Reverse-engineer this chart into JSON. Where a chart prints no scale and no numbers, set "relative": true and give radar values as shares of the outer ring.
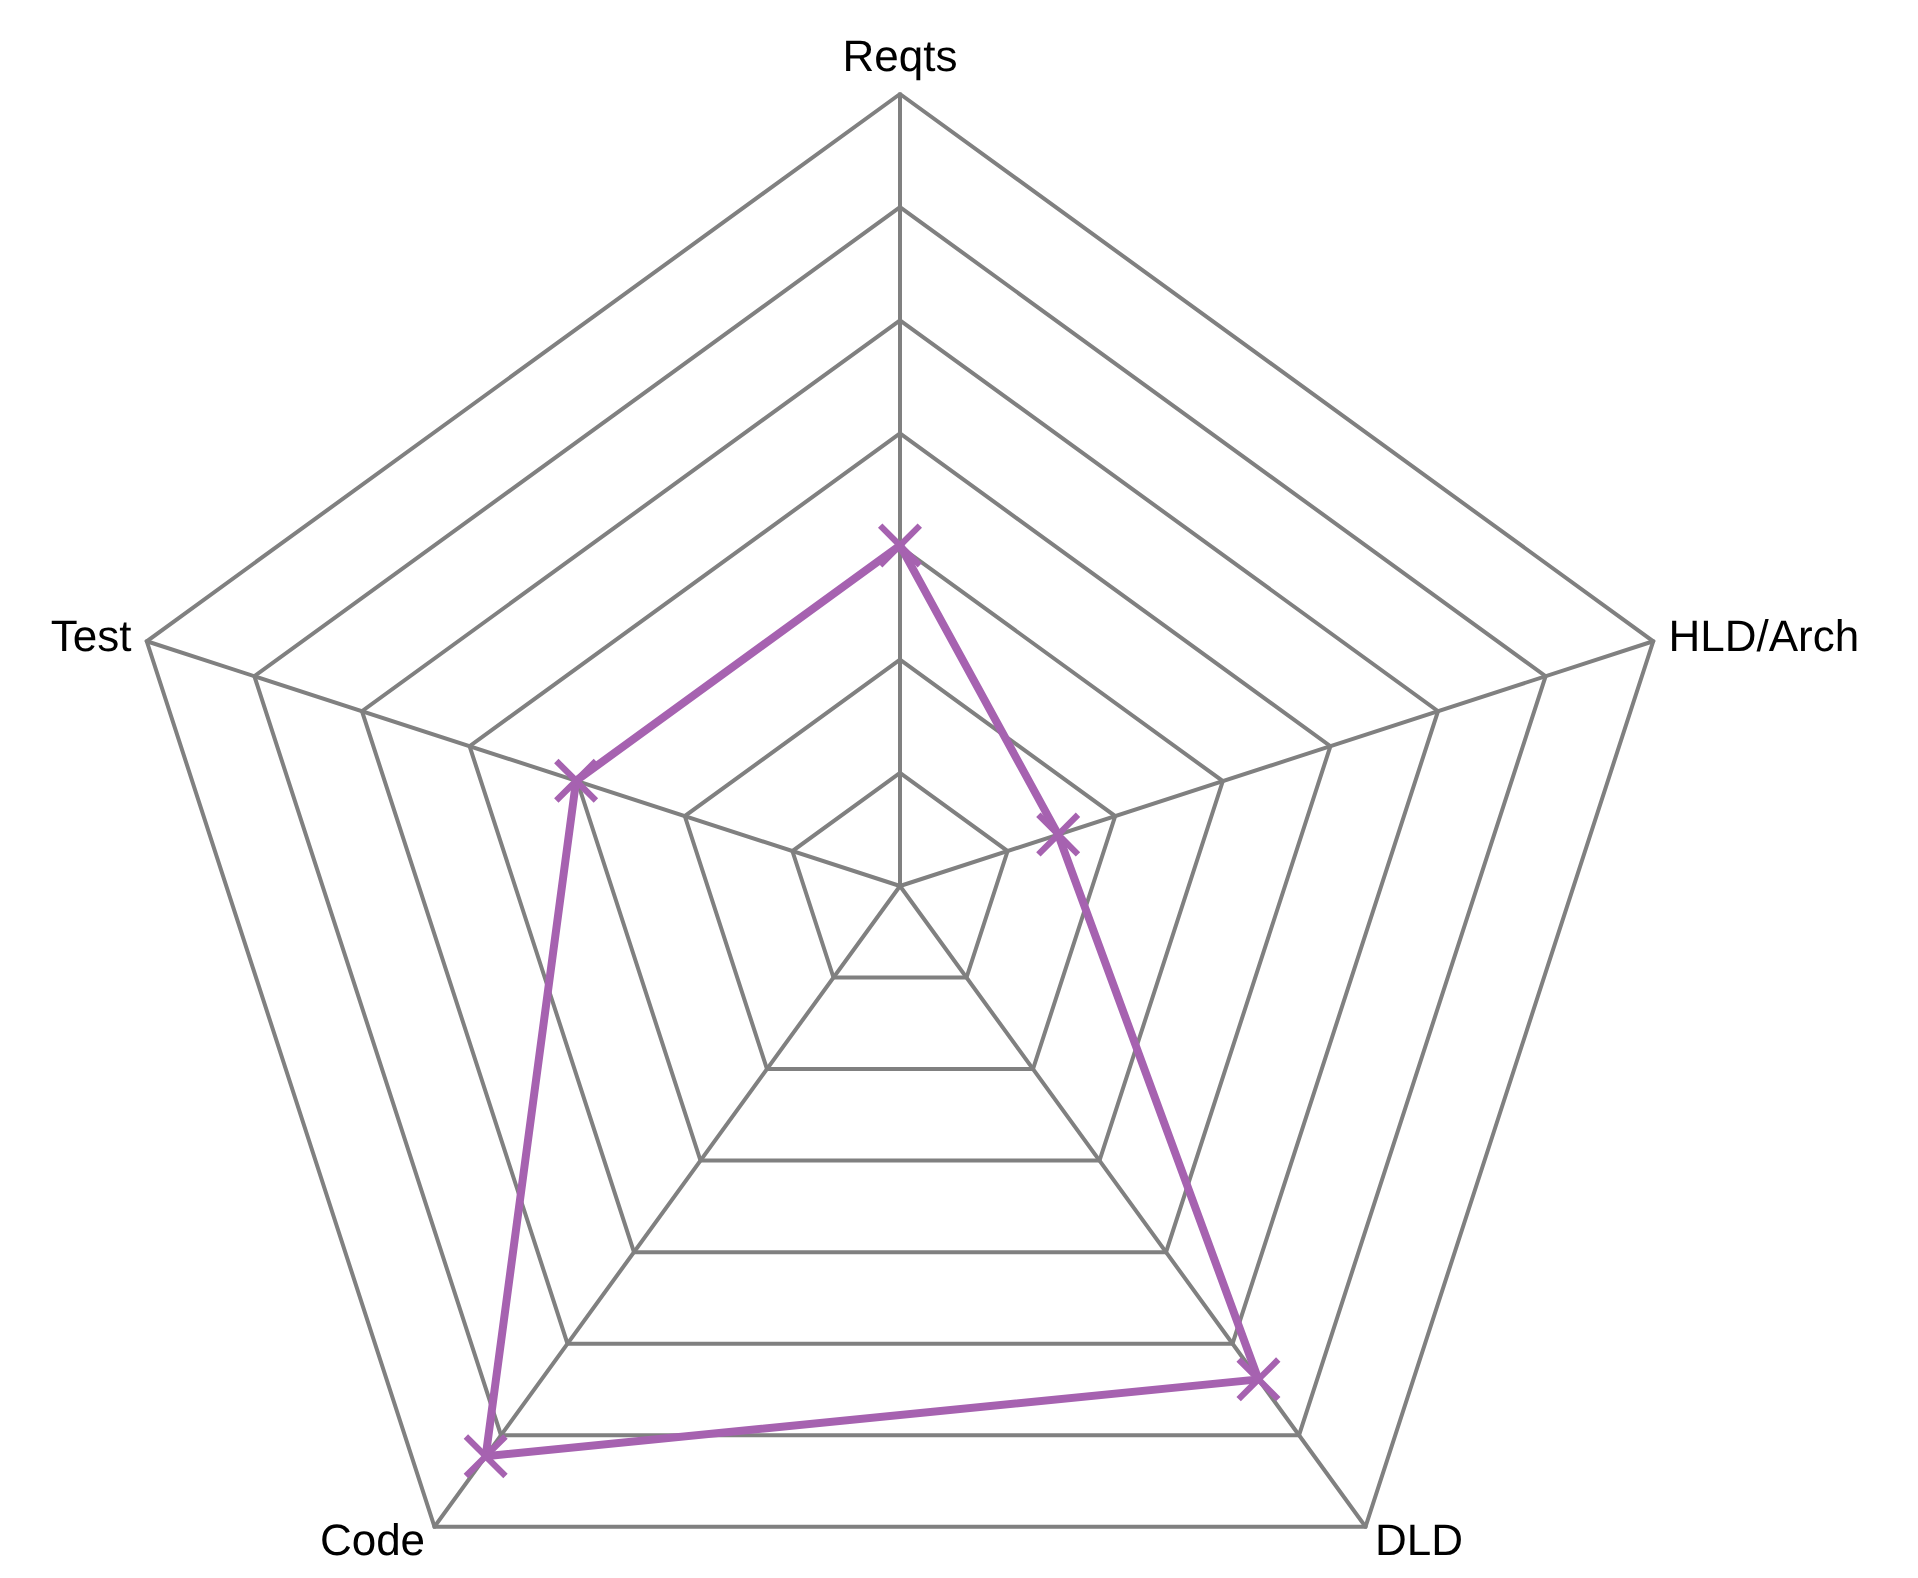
{
  "chart_data": {
    "type": "radar",
    "relative": true,
    "categories": [
      "Reqts",
      "HLD/Arch",
      "DLD",
      "Code",
      "Test"
    ],
    "series": [
      {
        "color": "#a662b0",
        "values": [
          0.43,
          0.21,
          0.77,
          0.89,
          0.43
        ]
      }
    ],
    "grid": true,
    "marker": "cross",
    "line_style": "solid"
  }
}
